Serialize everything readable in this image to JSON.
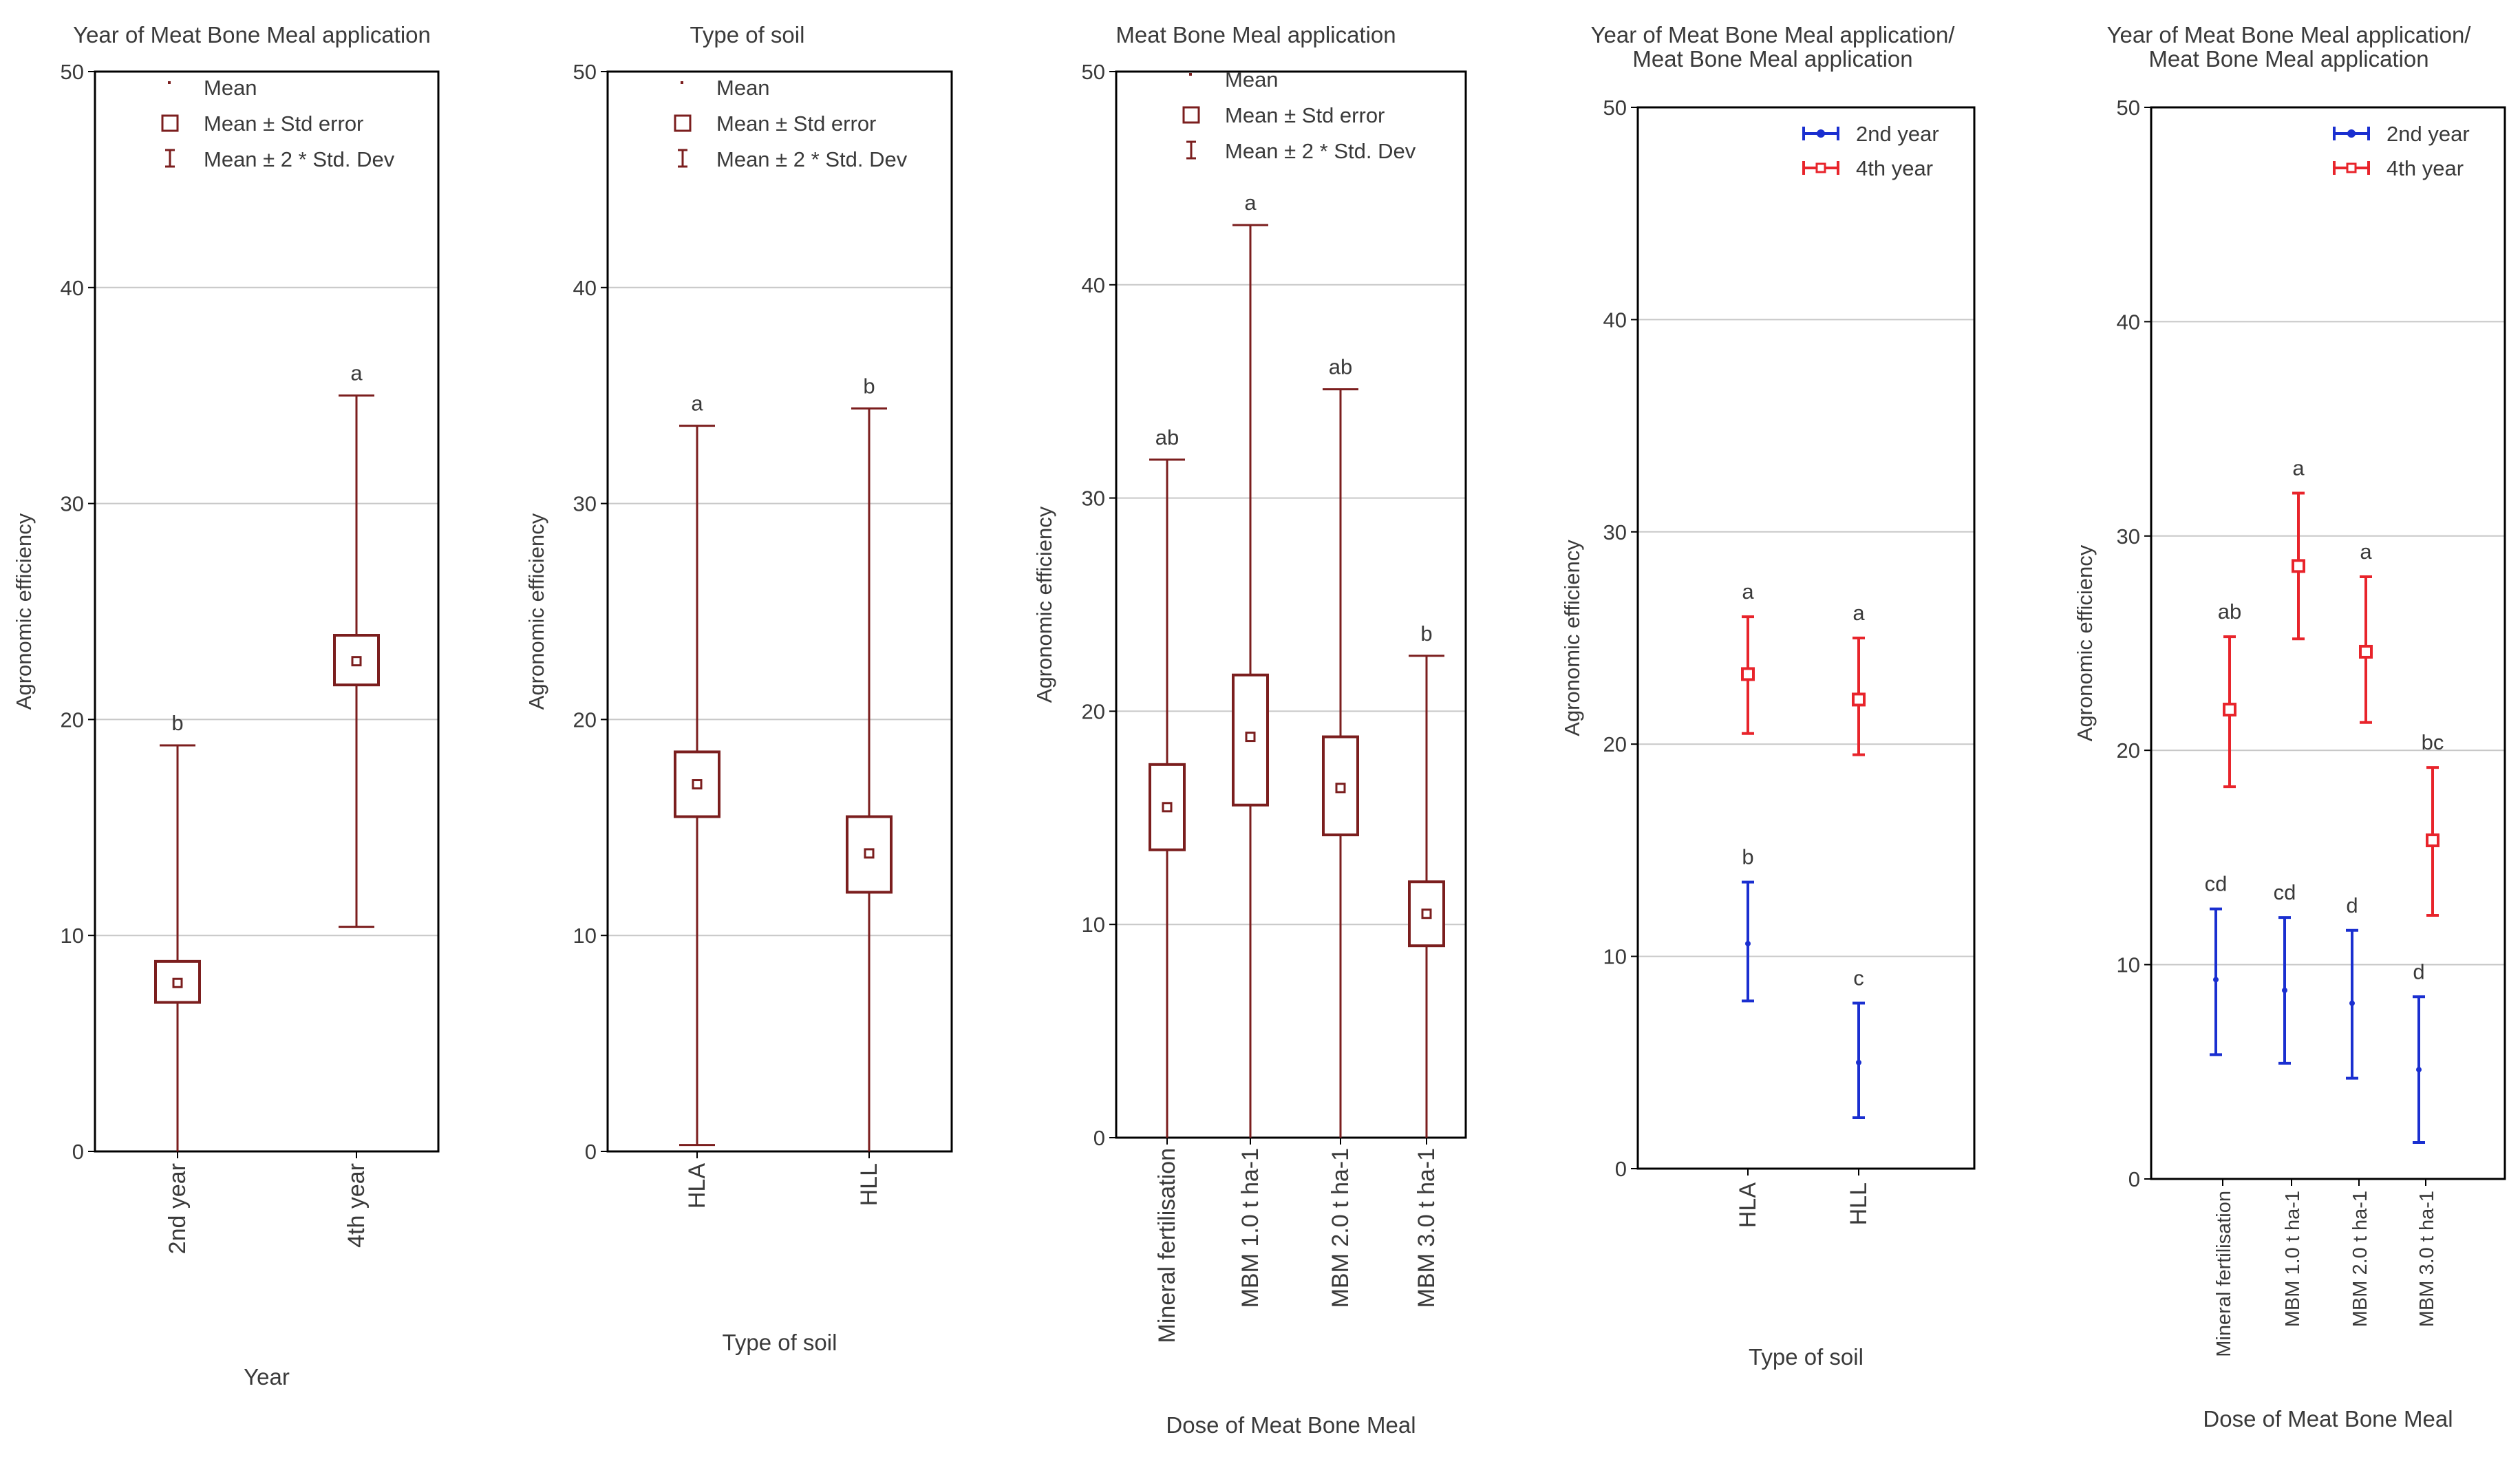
{
  "colors": {
    "dark_red": "#7B1E1E",
    "blue": "#1A2FD0",
    "red": "#E8242B",
    "grid": "#c8c8c8",
    "frame": "#000000",
    "text": "#3a3a3a"
  },
  "chart_data": [
    {
      "type": "box",
      "title": "Year of Meat Bone Meal application",
      "xlabel": "Year",
      "ylabel": "Agronomic efficiency",
      "ylim": [
        0,
        50
      ],
      "yticks": [
        "0",
        "10",
        "20",
        "30",
        "40",
        "50"
      ],
      "legend": [
        "Mean",
        "Mean ± Std error",
        "Mean ± 2 * Std. Dev"
      ],
      "legend_position": "top-left",
      "categories": [
        "2nd year",
        "4th year"
      ],
      "series": [
        {
          "name": "Agronomic efficiency",
          "mean": [
            7.8,
            22.7
          ],
          "se_low": [
            6.9,
            21.6
          ],
          "se_high": [
            8.8,
            23.9
          ],
          "sd_low": [
            0,
            10.4
          ],
          "sd_high": [
            18.8,
            35.0
          ],
          "letters": [
            "b",
            "a"
          ]
        }
      ]
    },
    {
      "type": "box",
      "title": "Type of soil",
      "xlabel": "Type of soil",
      "ylabel": "Agronomic efficiency",
      "ylim": [
        0,
        50
      ],
      "yticks": [
        "0",
        "10",
        "20",
        "30",
        "40",
        "50"
      ],
      "legend": [
        "Mean",
        "Mean ± Std error",
        "Mean ± 2 * Std. Dev"
      ],
      "legend_position": "top-left",
      "categories": [
        "HLA",
        "HLL"
      ],
      "series": [
        {
          "name": "Agronomic efficiency",
          "mean": [
            17.0,
            13.8
          ],
          "se_low": [
            15.5,
            12.0
          ],
          "se_high": [
            18.5,
            15.5
          ],
          "sd_low": [
            0.3,
            0
          ],
          "sd_high": [
            33.6,
            34.4
          ],
          "letters": [
            "a",
            "b"
          ]
        }
      ]
    },
    {
      "type": "box",
      "title": "Meat Bone Meal application",
      "xlabel": "Dose of Meat Bone Meal",
      "ylabel": "Agronomic efficiency",
      "ylim": [
        0,
        50
      ],
      "yticks": [
        "0",
        "10",
        "20",
        "30",
        "40",
        "50"
      ],
      "legend": [
        "Mean",
        "Mean ± Std error",
        "Mean ± 2 * Std. Dev"
      ],
      "legend_position": "top-left",
      "categories": [
        "Mineral fertilisation",
        "MBM 1.0 t ha-1",
        "MBM 2.0 t ha-1",
        "MBM 3.0 t ha-1"
      ],
      "series": [
        {
          "name": "Agronomic efficiency",
          "mean": [
            15.5,
            18.8,
            16.4,
            10.5
          ],
          "se_low": [
            13.5,
            15.6,
            14.2,
            9.0
          ],
          "se_high": [
            17.5,
            21.7,
            18.8,
            12.0
          ],
          "sd_low": [
            0,
            0,
            0,
            0
          ],
          "sd_high": [
            31.8,
            42.8,
            35.1,
            22.6
          ],
          "letters": [
            "ab",
            "a",
            "ab",
            "b"
          ]
        }
      ]
    },
    {
      "type": "errorbar",
      "title": "Year of Meat Bone Meal application/Meat Bone Meal application",
      "xlabel": "Type of soil",
      "ylabel": "Agronomic efficiency",
      "ylim": [
        0,
        50
      ],
      "yticks": [
        "0",
        "10",
        "20",
        "30",
        "40",
        "50"
      ],
      "legend_position": "top-right",
      "categories": [
        "HLA",
        "HLL"
      ],
      "series": [
        {
          "name": "2nd year",
          "color": "#1A2FD0",
          "marker": "dot",
          "mean": [
            10.6,
            5.0
          ],
          "low": [
            7.9,
            2.4
          ],
          "high": [
            13.5,
            7.8
          ],
          "letters": [
            "b",
            "c"
          ]
        },
        {
          "name": "4th year",
          "color": "#E8242B",
          "marker": "square",
          "mean": [
            23.3,
            22.1
          ],
          "low": [
            20.5,
            19.5
          ],
          "high": [
            26.0,
            25.0
          ],
          "letters": [
            "a",
            "a"
          ]
        }
      ]
    },
    {
      "type": "errorbar",
      "title": "Year of Meat Bone Meal application/Meat Bone Meal application",
      "xlabel": "Dose of Meat Bone Meal",
      "ylabel": "Agronomic efficiency",
      "ylim": [
        0,
        50
      ],
      "yticks": [
        "0",
        "10",
        "20",
        "30",
        "40",
        "50"
      ],
      "legend_position": "top-right",
      "categories": [
        "Mineral fertilisation",
        "MBM 1.0 t ha-1",
        "MBM 2.0 t ha-1",
        "MBM 3.0 t ha-1"
      ],
      "series": [
        {
          "name": "2nd year",
          "color": "#1A2FD0",
          "marker": "dot",
          "mean": [
            9.3,
            8.8,
            8.2,
            5.1
          ],
          "low": [
            5.8,
            5.4,
            4.7,
            1.7
          ],
          "high": [
            12.6,
            12.2,
            11.6,
            8.5
          ],
          "letters": [
            "cd",
            "cd",
            "d",
            "d"
          ]
        },
        {
          "name": "4th year",
          "color": "#E8242B",
          "marker": "square",
          "mean": [
            21.9,
            28.6,
            24.6,
            15.8
          ],
          "low": [
            18.3,
            25.2,
            21.3,
            12.3
          ],
          "high": [
            25.3,
            32.0,
            28.1,
            19.2
          ],
          "letters": [
            "ab",
            "a",
            "a",
            "bc"
          ]
        }
      ]
    }
  ]
}
